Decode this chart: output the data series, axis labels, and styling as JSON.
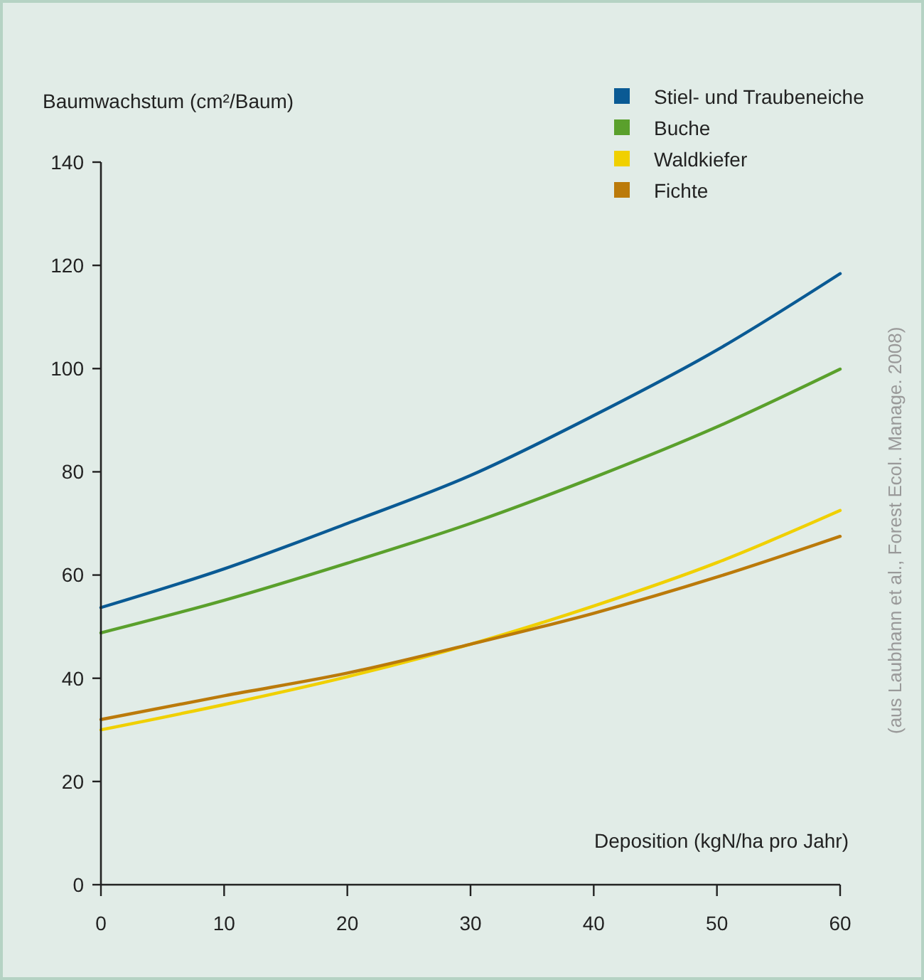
{
  "chart_data": {
    "type": "line",
    "ylabel": "Baumwachstum (cm²/Baum)",
    "xlabel": "Deposition (kgN/ha pro Jahr)",
    "x": [
      0,
      10,
      20,
      30,
      40,
      50,
      60
    ],
    "xlim": [
      0,
      60
    ],
    "xticks": [
      0,
      10,
      20,
      30,
      40,
      50,
      60
    ],
    "ylim": [
      0,
      140
    ],
    "yticks": [
      0,
      20,
      40,
      60,
      80,
      100,
      120,
      140
    ],
    "legend": "top right",
    "grid": false,
    "marker": "none",
    "line_style": "solid",
    "series": [
      {
        "name": "Stiel- und Traubeneiche",
        "color": "#0a5a94",
        "values": [
          53.7,
          61.2,
          70,
          79.3,
          90.9,
          103.6,
          118.4
        ]
      },
      {
        "name": "Buche",
        "color": "#5aa02c",
        "values": [
          48.8,
          55.1,
          62.3,
          70,
          78.9,
          88.7,
          99.9
        ]
      },
      {
        "name": "Waldkiefer",
        "color": "#f0d000",
        "values": [
          30,
          34.9,
          40.3,
          46.6,
          54,
          62.4,
          72.5
        ]
      },
      {
        "name": "Fichte",
        "color": "#bb7a0a",
        "values": [
          32,
          36.6,
          41,
          46.6,
          52.6,
          59.6,
          67.5
        ]
      }
    ],
    "annotations": [
      "(aus Laubhann et al., Forest Ecol. Manage. 2008)"
    ]
  }
}
